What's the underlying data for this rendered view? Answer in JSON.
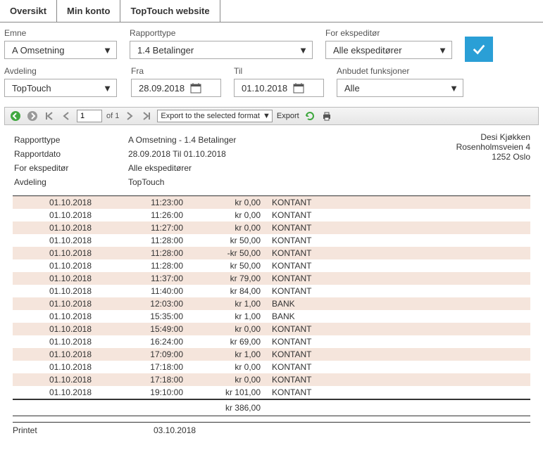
{
  "tabs": [
    "Oversikt",
    "Min konto",
    "TopTouch website"
  ],
  "filters": {
    "emne": {
      "label": "Emne",
      "value": "A Omsetning"
    },
    "rapporttype": {
      "label": "Rapporttype",
      "value": "1.4 Betalinger"
    },
    "for_ekspeditor": {
      "label": "For ekspeditør",
      "value": "Alle ekspeditører"
    },
    "avdeling": {
      "label": "Avdeling",
      "value": "TopTouch"
    },
    "fra": {
      "label": "Fra",
      "value": "28.09.2018"
    },
    "til": {
      "label": "Til",
      "value": "01.10.2018"
    },
    "anbudet": {
      "label": "Anbudet funksjoner",
      "value": "Alle"
    }
  },
  "toolbar": {
    "page": "1",
    "of_label": "of 1",
    "export_select": "Export to the selected format",
    "export_link": "Export"
  },
  "report_meta": {
    "rows": [
      [
        "Rapporttype",
        "A Omsetning - 1.4 Betalinger"
      ],
      [
        "Rapportdato",
        "28.09.2018 Til 01.10.2018"
      ],
      [
        "For ekspeditør",
        "Alle ekspeditører"
      ],
      [
        "Avdeling",
        "TopTouch"
      ]
    ],
    "company": [
      "Desi Kjøkken",
      "Rosenholmsveien 4",
      "1252 Oslo"
    ]
  },
  "rows": [
    [
      "01.10.2018",
      "11:23:00",
      "kr 0,00",
      "KONTANT"
    ],
    [
      "01.10.2018",
      "11:26:00",
      "kr 0,00",
      "KONTANT"
    ],
    [
      "01.10.2018",
      "11:27:00",
      "kr 0,00",
      "KONTANT"
    ],
    [
      "01.10.2018",
      "11:28:00",
      "kr 50,00",
      "KONTANT"
    ],
    [
      "01.10.2018",
      "11:28:00",
      "-kr 50,00",
      "KONTANT"
    ],
    [
      "01.10.2018",
      "11:28:00",
      "kr 50,00",
      "KONTANT"
    ],
    [
      "01.10.2018",
      "11:37:00",
      "kr 79,00",
      "KONTANT"
    ],
    [
      "01.10.2018",
      "11:40:00",
      "kr 84,00",
      "KONTANT"
    ],
    [
      "01.10.2018",
      "12:03:00",
      "kr 1,00",
      "BANK"
    ],
    [
      "01.10.2018",
      "15:35:00",
      "kr 1,00",
      "BANK"
    ],
    [
      "01.10.2018",
      "15:49:00",
      "kr 0,00",
      "KONTANT"
    ],
    [
      "01.10.2018",
      "16:24:00",
      "kr 69,00",
      "KONTANT"
    ],
    [
      "01.10.2018",
      "17:09:00",
      "kr 1,00",
      "KONTANT"
    ],
    [
      "01.10.2018",
      "17:18:00",
      "kr 0,00",
      "KONTANT"
    ],
    [
      "01.10.2018",
      "17:18:00",
      "kr 0,00",
      "KONTANT"
    ],
    [
      "01.10.2018",
      "19:10:00",
      "kr 101,00",
      "KONTANT"
    ]
  ],
  "total": "kr 386,00",
  "printed": {
    "label": "Printet",
    "value": "03.10.2018"
  },
  "colors": {
    "accent": "#2a9fd6",
    "row_alt": "#f5e5dc",
    "nav_green": "#3fa83f",
    "nav_grey": "#9a9a9a"
  }
}
